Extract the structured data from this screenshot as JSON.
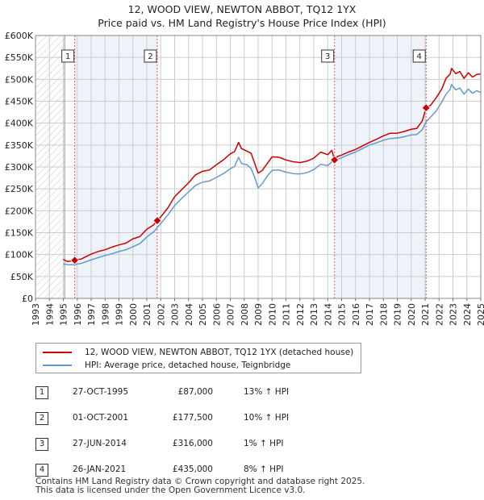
{
  "chart_data": {
    "type": "line",
    "title": "12, WOOD VIEW, NEWTON ABBOT, TQ12 1YX",
    "subtitle": "Price paid vs. HM Land Registry's House Price Index (HPI)",
    "xlim": [
      1993,
      2025
    ],
    "ylim": [
      0,
      600000
    ],
    "x_ticks": [
      "1993",
      "1994",
      "1995",
      "1996",
      "1997",
      "1998",
      "1999",
      "2000",
      "2001",
      "2002",
      "2003",
      "2004",
      "2005",
      "2006",
      "2007",
      "2008",
      "2009",
      "2010",
      "2011",
      "2012",
      "2013",
      "2014",
      "2015",
      "2016",
      "2017",
      "2018",
      "2019",
      "2020",
      "2021",
      "2022",
      "2023",
      "2024",
      "2025"
    ],
    "y_ticks": [
      {
        "value": 0,
        "label": "£0"
      },
      {
        "value": 50000,
        "label": "£50K"
      },
      {
        "value": 100000,
        "label": "£100K"
      },
      {
        "value": 150000,
        "label": "£150K"
      },
      {
        "value": 200000,
        "label": "£200K"
      },
      {
        "value": 250000,
        "label": "£250K"
      },
      {
        "value": 300000,
        "label": "£300K"
      },
      {
        "value": 350000,
        "label": "£350K"
      },
      {
        "value": 400000,
        "label": "£400K"
      },
      {
        "value": 450000,
        "label": "£450K"
      },
      {
        "value": 500000,
        "label": "£500K"
      },
      {
        "value": 550000,
        "label": "£550K"
      },
      {
        "value": 600000,
        "label": "£600K"
      }
    ],
    "hatched_before": 1995.1,
    "series": [
      {
        "name": "12, WOOD VIEW, NEWTON ABBOT, TQ12 1YX (detached house)",
        "color": "#cc0000",
        "points": [
          [
            1995.0,
            89000
          ],
          [
            1995.3,
            84000
          ],
          [
            1995.82,
            87000
          ],
          [
            1996.3,
            90000
          ],
          [
            1997,
            101000
          ],
          [
            1997.5,
            107000
          ],
          [
            1998,
            111000
          ],
          [
            1998.5,
            117000
          ],
          [
            1999,
            122000
          ],
          [
            1999.5,
            126000
          ],
          [
            2000,
            136000
          ],
          [
            2000.5,
            141000
          ],
          [
            2001,
            158000
          ],
          [
            2001.5,
            168000
          ],
          [
            2001.75,
            177500
          ],
          [
            2002,
            186000
          ],
          [
            2002.5,
            206000
          ],
          [
            2003,
            232000
          ],
          [
            2003.5,
            248000
          ],
          [
            2004,
            264000
          ],
          [
            2004.5,
            282000
          ],
          [
            2005,
            290000
          ],
          [
            2005.5,
            293000
          ],
          [
            2006,
            305000
          ],
          [
            2006.5,
            316000
          ],
          [
            2007,
            330000
          ],
          [
            2007.3,
            335000
          ],
          [
            2007.6,
            356000
          ],
          [
            2007.8,
            342000
          ],
          [
            2008.2,
            336000
          ],
          [
            2008.5,
            331000
          ],
          [
            2008.8,
            304000
          ],
          [
            2009.0,
            286000
          ],
          [
            2009.3,
            292000
          ],
          [
            2009.7,
            310000
          ],
          [
            2010,
            323000
          ],
          [
            2010.5,
            322000
          ],
          [
            2011,
            316000
          ],
          [
            2011.5,
            312000
          ],
          [
            2012,
            310000
          ],
          [
            2012.5,
            313000
          ],
          [
            2013,
            320000
          ],
          [
            2013.5,
            334000
          ],
          [
            2014,
            328000
          ],
          [
            2014.3,
            338000
          ],
          [
            2014.49,
            316000
          ],
          [
            2014.7,
            324000
          ],
          [
            2015,
            327000
          ],
          [
            2015.5,
            334000
          ],
          [
            2016,
            340000
          ],
          [
            2016.5,
            348000
          ],
          [
            2017,
            356000
          ],
          [
            2017.5,
            363000
          ],
          [
            2018,
            371000
          ],
          [
            2018.5,
            377000
          ],
          [
            2019,
            377000
          ],
          [
            2019.5,
            381000
          ],
          [
            2020,
            386000
          ],
          [
            2020.4,
            388000
          ],
          [
            2020.8,
            405000
          ],
          [
            2021.07,
            435000
          ],
          [
            2021.4,
            441000
          ],
          [
            2021.8,
            458000
          ],
          [
            2022.2,
            478000
          ],
          [
            2022.5,
            502000
          ],
          [
            2022.8,
            512000
          ],
          [
            2022.9,
            525000
          ],
          [
            2023.2,
            513000
          ],
          [
            2023.5,
            518000
          ],
          [
            2023.8,
            502000
          ],
          [
            2024.1,
            515000
          ],
          [
            2024.4,
            505000
          ],
          [
            2024.7,
            511000
          ],
          [
            2025.0,
            512000
          ]
        ]
      },
      {
        "name": "HPI: Average price, detached house, Teignbridge",
        "color": "#6699cc",
        "points": [
          [
            1995.0,
            79000
          ],
          [
            1995.3,
            77000
          ],
          [
            1995.82,
            76900
          ],
          [
            1996.3,
            80000
          ],
          [
            1997,
            88000
          ],
          [
            1997.5,
            93000
          ],
          [
            1998,
            98000
          ],
          [
            1998.5,
            102000
          ],
          [
            1999,
            107000
          ],
          [
            1999.5,
            111000
          ],
          [
            2000,
            118000
          ],
          [
            2000.5,
            125000
          ],
          [
            2001,
            140000
          ],
          [
            2001.5,
            152000
          ],
          [
            2001.75,
            161400
          ],
          [
            2002,
            171000
          ],
          [
            2002.5,
            190000
          ],
          [
            2003,
            212000
          ],
          [
            2003.5,
            228000
          ],
          [
            2004,
            243000
          ],
          [
            2004.5,
            258000
          ],
          [
            2005,
            265000
          ],
          [
            2005.5,
            268000
          ],
          [
            2006,
            276000
          ],
          [
            2006.5,
            285000
          ],
          [
            2007,
            296000
          ],
          [
            2007.3,
            301000
          ],
          [
            2007.6,
            322000
          ],
          [
            2007.8,
            308000
          ],
          [
            2008.2,
            305000
          ],
          [
            2008.5,
            296000
          ],
          [
            2008.8,
            272000
          ],
          [
            2009.0,
            252000
          ],
          [
            2009.3,
            262000
          ],
          [
            2009.7,
            281000
          ],
          [
            2010,
            292000
          ],
          [
            2010.5,
            293000
          ],
          [
            2011,
            288000
          ],
          [
            2011.5,
            285000
          ],
          [
            2012,
            284000
          ],
          [
            2012.5,
            287000
          ],
          [
            2013,
            294000
          ],
          [
            2013.5,
            306000
          ],
          [
            2014,
            303000
          ],
          [
            2014.3,
            312000
          ],
          [
            2014.49,
            312900
          ],
          [
            2014.7,
            317000
          ],
          [
            2015,
            321000
          ],
          [
            2015.5,
            328000
          ],
          [
            2016,
            334000
          ],
          [
            2016.5,
            342000
          ],
          [
            2017,
            350000
          ],
          [
            2017.5,
            355000
          ],
          [
            2018,
            361000
          ],
          [
            2018.5,
            365000
          ],
          [
            2019,
            366000
          ],
          [
            2019.5,
            369000
          ],
          [
            2020,
            373000
          ],
          [
            2020.4,
            374000
          ],
          [
            2020.8,
            385000
          ],
          [
            2021.07,
            402800
          ],
          [
            2021.4,
            414000
          ],
          [
            2021.8,
            428000
          ],
          [
            2022.2,
            448000
          ],
          [
            2022.5,
            466000
          ],
          [
            2022.8,
            477000
          ],
          [
            2022.9,
            488000
          ],
          [
            2023.2,
            476000
          ],
          [
            2023.5,
            480000
          ],
          [
            2023.8,
            466000
          ],
          [
            2024.1,
            478000
          ],
          [
            2024.4,
            468000
          ],
          [
            2024.7,
            474000
          ],
          [
            2025.0,
            470000
          ]
        ]
      }
    ],
    "sales": [
      {
        "id": "1",
        "x": 1995.82,
        "price": 87000,
        "date": "27-OCT-1995",
        "price_label": "£87,000",
        "hpi": "13% ↑ HPI"
      },
      {
        "id": "2",
        "x": 2001.75,
        "price": 177500,
        "date": "01-OCT-2001",
        "price_label": "£177,500",
        "hpi": "10% ↑ HPI"
      },
      {
        "id": "3",
        "x": 2014.49,
        "price": 316000,
        "date": "27-JUN-2014",
        "price_label": "£316,000",
        "hpi": "1% ↑ HPI"
      },
      {
        "id": "4",
        "x": 2021.07,
        "price": 435000,
        "date": "26-JAN-2021",
        "price_label": "£435,000",
        "hpi": "8% ↑ HPI"
      }
    ],
    "legend": [
      "12, WOOD VIEW, NEWTON ABBOT, TQ12 1YX (detached house)",
      "HPI: Average price, detached house, Teignbridge"
    ],
    "colors": {
      "property": "#cc0000",
      "hpi": "#6699cc",
      "highlight": "#eef2f9",
      "grid": "#cccccc",
      "sale_line": "#dd5555"
    }
  },
  "footer": {
    "line1": "Contains HM Land Registry data © Crown copyright and database right 2025.",
    "line2": "This data is licensed under the Open Government Licence v3.0."
  }
}
